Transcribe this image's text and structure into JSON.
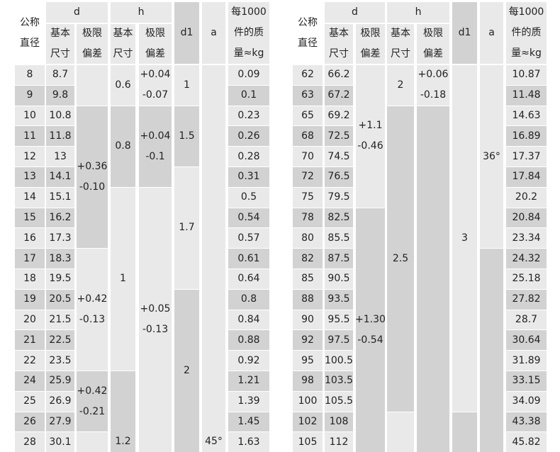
{
  "colors": {
    "dark": "#d2d2d2",
    "light": "#e9e9e9",
    "white": "#ffffff",
    "text": "#222222"
  },
  "headers": {
    "nominal": [
      "公称",
      "直径"
    ],
    "d": "d",
    "h": "h",
    "basic": [
      "基本",
      "尺寸"
    ],
    "limit": [
      "极限",
      "偏差"
    ],
    "d1": "d1",
    "a": "a",
    "weight": [
      "每1000",
      "件的质",
      "量≈kg"
    ]
  },
  "left": {
    "rows": [
      [
        "8",
        "8.7",
        "0.09"
      ],
      [
        "9",
        "9.8",
        "0.1"
      ],
      [
        "10",
        "10.8",
        "0.23"
      ],
      [
        "11",
        "11.8",
        "0.26"
      ],
      [
        "12",
        "13",
        "0.28"
      ],
      [
        "13",
        "14.1",
        "0.31"
      ],
      [
        "14",
        "15.1",
        "0.5"
      ],
      [
        "15",
        "16.2",
        "0.54"
      ],
      [
        "16",
        "17.3",
        "0.57"
      ],
      [
        "17",
        "18.3",
        "0.61"
      ],
      [
        "18",
        "19.5",
        "0.64"
      ],
      [
        "19",
        "20.5",
        "0.8"
      ],
      [
        "20",
        "21.5",
        "0.84"
      ],
      [
        "21",
        "22.5",
        "0.88"
      ],
      [
        "22",
        "23.5",
        "0.92"
      ],
      [
        "24",
        "25.9",
        "1.21"
      ],
      [
        "25",
        "26.9",
        "1.39"
      ],
      [
        "26",
        "27.9",
        "1.45"
      ],
      [
        "28",
        "30.1",
        "1.63"
      ]
    ],
    "spans": {
      "d_tol": [
        {
          "s": 0,
          "e": 1,
          "t": []
        },
        {
          "s": 2,
          "e": 8,
          "t": [
            "+0.36",
            "-0.10"
          ]
        },
        {
          "s": 9,
          "e": 14,
          "t": [
            "+0.42",
            "-0.13"
          ]
        },
        {
          "s": 15,
          "e": 17,
          "t": [
            "+0.42",
            "-0.21"
          ]
        },
        {
          "s": 18,
          "e": 18,
          "t": []
        }
      ],
      "h_basic": [
        {
          "s": 0,
          "e": 1,
          "t": [
            "0.6"
          ]
        },
        {
          "s": 2,
          "e": 5,
          "t": [
            "0.8"
          ]
        },
        {
          "s": 6,
          "e": 14,
          "t": [
            "1"
          ]
        },
        {
          "s": 15,
          "e": 18,
          "t": [
            "1.2"
          ],
          "valign": "bottom"
        }
      ],
      "h_tol": [
        {
          "s": 0,
          "e": 1,
          "t": [
            "+0.04",
            "-0.07"
          ]
        },
        {
          "s": 2,
          "e": 5,
          "t": [
            "+0.04",
            "-0.1"
          ]
        },
        {
          "s": 6,
          "e": 18,
          "t": [
            "+0.05",
            "-0.13"
          ]
        }
      ],
      "d1": [
        {
          "s": 0,
          "e": 1,
          "t": [
            "1"
          ]
        },
        {
          "s": 2,
          "e": 4,
          "t": [
            "1.5"
          ]
        },
        {
          "s": 5,
          "e": 10,
          "t": [
            "1.7"
          ]
        },
        {
          "s": 11,
          "e": 18,
          "t": [
            "2"
          ]
        }
      ],
      "a": [
        {
          "s": 0,
          "e": 18,
          "t": [
            "45°"
          ],
          "valign": "bottom"
        }
      ]
    }
  },
  "right": {
    "rows": [
      [
        "62",
        "66.2",
        "10.87"
      ],
      [
        "63",
        "67.2",
        "11.48"
      ],
      [
        "65",
        "69.2",
        "14.63"
      ],
      [
        "68",
        "72.5",
        "16.89"
      ],
      [
        "70",
        "74.5",
        "17.37"
      ],
      [
        "72",
        "76.5",
        "17.84"
      ],
      [
        "75",
        "79.5",
        "20.2"
      ],
      [
        "78",
        "82.5",
        "20.84"
      ],
      [
        "80",
        "85.5",
        "23.34"
      ],
      [
        "82",
        "87.5",
        "24.32"
      ],
      [
        "85",
        "90.5",
        "25.18"
      ],
      [
        "88",
        "93.5",
        "27.82"
      ],
      [
        "90",
        "95.5",
        "28.7"
      ],
      [
        "92",
        "97.5",
        "30.64"
      ],
      [
        "95",
        "100.5",
        "31.89"
      ],
      [
        "98",
        "103.5",
        "33.15"
      ],
      [
        "100",
        "105.5",
        "34.09"
      ],
      [
        "102",
        "108",
        "43.38"
      ],
      [
        "105",
        "112",
        "45.82"
      ]
    ],
    "spans": {
      "d_tol": [
        {
          "s": 0,
          "e": 6,
          "t": [
            "+1.1",
            "-0.46"
          ]
        },
        {
          "s": 7,
          "e": 18,
          "t": [
            "+1.30",
            "-0.54"
          ]
        }
      ],
      "h_basic": [
        {
          "s": 0,
          "e": 1,
          "t": [
            "2"
          ]
        },
        {
          "s": 2,
          "e": 16,
          "t": [
            "2.5"
          ]
        },
        {
          "s": 17,
          "e": 18,
          "t": []
        }
      ],
      "h_tol": [
        {
          "s": 0,
          "e": 1,
          "t": [
            "+0.06",
            "-0.18"
          ]
        },
        {
          "s": 2,
          "e": 18,
          "t": []
        }
      ],
      "d1": [
        {
          "s": 0,
          "e": 16,
          "t": [
            "3"
          ]
        },
        {
          "s": 17,
          "e": 18,
          "t": []
        }
      ],
      "a": [
        {
          "s": 0,
          "e": 8,
          "t": [
            "36°"
          ]
        },
        {
          "s": 9,
          "e": 18,
          "t": []
        }
      ]
    }
  }
}
